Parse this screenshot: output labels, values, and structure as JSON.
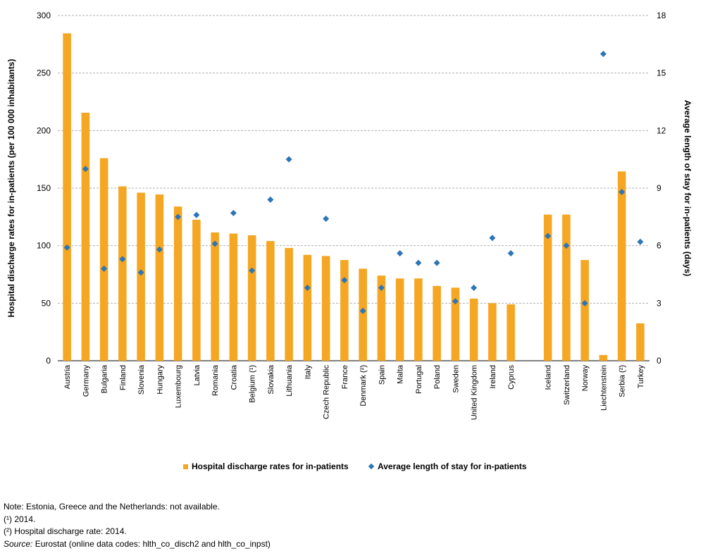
{
  "chart_data": {
    "type": "bar",
    "categories": [
      "Austria",
      "Germany",
      "Bulgaria",
      "Finland",
      "Slovenia",
      "Hungary",
      "Luxembourg",
      "Latvia",
      "Romania",
      "Croatia",
      "Belgium (¹)",
      "Slovakia",
      "Lithuania",
      "Italy",
      "Czech Republic",
      "France",
      "Denmark (²)",
      "Spain",
      "Malta",
      "Portugal",
      "Poland",
      "Sweden",
      "United Kingdom",
      "Ireland",
      "Cyprus",
      "",
      "Iceland",
      "Switzerland",
      "Norway",
      "Liechtenstein",
      "Serbia (²)",
      "Turkey"
    ],
    "series": [
      {
        "name": "Hospital discharge rates for in-patients",
        "type": "bar",
        "axis": "left",
        "color": "#f5a623",
        "values": [
          284.5,
          215.5,
          176,
          151.5,
          146,
          144.5,
          134,
          122.5,
          111.5,
          110.5,
          109,
          104,
          98,
          92,
          91,
          87.5,
          80,
          74,
          71.5,
          71.5,
          65,
          63.5,
          54,
          50,
          49,
          null,
          127,
          127,
          87.5,
          5,
          164.5,
          32.5
        ]
      },
      {
        "name": "Average length of stay for in-patients",
        "type": "scatter",
        "axis": "right",
        "color": "#2e75b6",
        "values": [
          5.9,
          10,
          4.8,
          5.3,
          4.6,
          5.8,
          7.5,
          7.6,
          6.1,
          7.7,
          4.7,
          8.4,
          10.5,
          3.8,
          7.4,
          4.2,
          2.6,
          3.8,
          5.6,
          5.1,
          5.1,
          3.1,
          3.8,
          6.4,
          5.6,
          null,
          6.5,
          6,
          3,
          16,
          8.8,
          6.2
        ]
      }
    ],
    "ylabel": "Hospital discharge rates for in-patients (per 100 000 inhabitants)",
    "y2label": "Average length of stay for in-patients (days)",
    "ylim": [
      0,
      300
    ],
    "y2lim": [
      0,
      18
    ],
    "yticks": [
      "0",
      "50",
      "100",
      "150",
      "200",
      "250",
      "300"
    ],
    "y2ticks": [
      "0",
      "3",
      "6",
      "9",
      "12",
      "15",
      "18"
    ],
    "grid": true,
    "legend_position": "bottom"
  },
  "legend": {
    "bars": "Hospital discharge rates for in-patients",
    "points": "Average length of stay for in-patients"
  },
  "notes": {
    "line1": "Note: Estonia, Greece and the Netherlands: not available.",
    "line2": "(¹) 2014.",
    "line3": "(²) Hospital discharge rate: 2014.",
    "source_label": "Source:",
    "source_text": " Eurostat (online data codes: hlth_co_disch2 and hlth_co_inpst)"
  }
}
